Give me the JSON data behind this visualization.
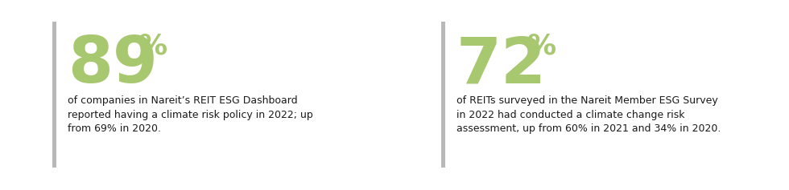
{
  "bg_color": "#ffffff",
  "bar_color": "#b8b8b8",
  "green_color": "#a8c870",
  "text_color": "#1a1a1a",
  "panel1": {
    "big_number": "89",
    "pct": "%",
    "description_lines": [
      "of companies in Nareit’s REIT ESG Dashboard",
      "reported having a climate risk policy in 2022; up",
      "from 69% in 2020."
    ]
  },
  "panel2": {
    "big_number": "72",
    "pct": "%",
    "description_lines": [
      "of REITs surveyed in the Nareit Member ESG Survey",
      "in 2022 had conducted a climate change risk",
      "assessment, up from 60% in 2021 and 34% in 2020."
    ]
  }
}
